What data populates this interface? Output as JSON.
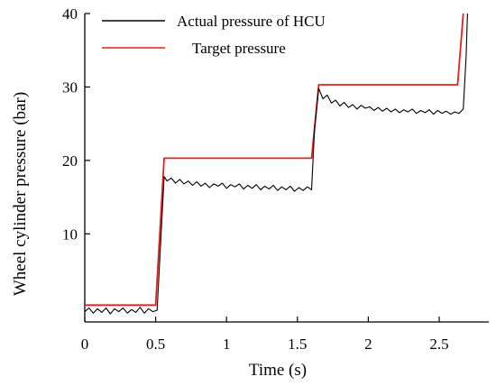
{
  "chart_data": {
    "type": "line",
    "title": "",
    "xlabel": "Time (s)",
    "ylabel": "Wheel cylinder pressure (bar)",
    "xlim": [
      0,
      2.85
    ],
    "ylim": [
      -2,
      40
    ],
    "x_ticks": [
      0,
      0.5,
      1,
      1.5,
      2,
      2.5
    ],
    "x_tick_labels": [
      "0",
      "0.5",
      "1",
      "1.5",
      "2",
      "2.5"
    ],
    "y_ticks": [
      10,
      20,
      30,
      40
    ],
    "y_tick_labels": [
      "10",
      "20",
      "30",
      "40"
    ],
    "grid": false,
    "legend_position": "top-left",
    "series": [
      {
        "name": "Actual pressure of HCU",
        "color": "#000000",
        "x": [
          0.0,
          0.03,
          0.06,
          0.09,
          0.12,
          0.15,
          0.18,
          0.21,
          0.24,
          0.27,
          0.3,
          0.33,
          0.36,
          0.39,
          0.42,
          0.45,
          0.48,
          0.51,
          0.56,
          0.58,
          0.61,
          0.64,
          0.67,
          0.7,
          0.73,
          0.76,
          0.79,
          0.82,
          0.85,
          0.88,
          0.91,
          0.94,
          0.97,
          1.0,
          1.03,
          1.06,
          1.09,
          1.12,
          1.15,
          1.18,
          1.21,
          1.24,
          1.27,
          1.3,
          1.33,
          1.36,
          1.39,
          1.42,
          1.45,
          1.48,
          1.51,
          1.54,
          1.57,
          1.6,
          1.62,
          1.65,
          1.68,
          1.71,
          1.74,
          1.77,
          1.8,
          1.83,
          1.86,
          1.89,
          1.92,
          1.95,
          1.98,
          2.01,
          2.04,
          2.07,
          2.1,
          2.13,
          2.16,
          2.19,
          2.22,
          2.25,
          2.28,
          2.31,
          2.34,
          2.37,
          2.4,
          2.43,
          2.46,
          2.49,
          2.52,
          2.55,
          2.58,
          2.61,
          2.64,
          2.67,
          2.69,
          2.7
        ],
        "y": [
          -0.6,
          -0.1,
          -0.8,
          -0.2,
          -0.7,
          -0.1,
          -0.9,
          -0.2,
          -0.6,
          -0.1,
          -0.8,
          -0.3,
          -0.7,
          0.0,
          -0.8,
          -0.2,
          -0.6,
          -0.4,
          17.8,
          17.2,
          17.6,
          16.9,
          17.4,
          16.8,
          17.2,
          16.6,
          17.1,
          16.5,
          16.9,
          16.3,
          16.8,
          16.5,
          16.9,
          16.2,
          16.7,
          16.4,
          16.8,
          16.1,
          16.6,
          16.2,
          16.7,
          16.0,
          16.5,
          16.1,
          16.6,
          15.9,
          16.4,
          16.0,
          16.5,
          15.8,
          16.3,
          15.9,
          16.4,
          16.0,
          24.0,
          29.8,
          28.4,
          28.9,
          27.8,
          28.2,
          27.4,
          27.9,
          27.2,
          27.6,
          27.0,
          27.5,
          27.1,
          27.3,
          26.8,
          27.2,
          26.7,
          27.1,
          26.6,
          27.0,
          26.5,
          26.9,
          26.6,
          27.0,
          26.4,
          26.8,
          26.5,
          26.9,
          26.3,
          26.8,
          26.4,
          26.7,
          26.3,
          26.6,
          26.4,
          27.0,
          34.0,
          40.0
        ]
      },
      {
        "name": "Target pressure",
        "color": "#e8201a",
        "x": [
          0.0,
          0.5,
          0.56,
          1.6,
          1.65,
          2.63,
          2.67
        ],
        "y": [
          0.3,
          0.3,
          20.3,
          20.3,
          30.3,
          30.3,
          40.0
        ]
      }
    ]
  }
}
